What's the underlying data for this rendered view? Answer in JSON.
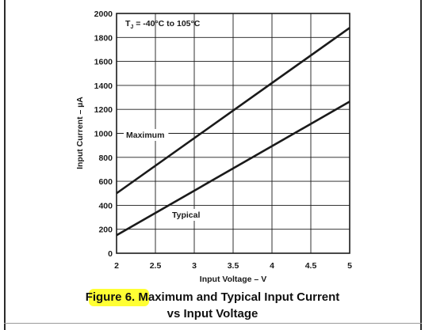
{
  "chart_data": {
    "type": "line",
    "xlabel": "Input Voltage – V",
    "ylabel": "Input Current – µA",
    "xlim": [
      2,
      5
    ],
    "ylim": [
      0,
      2000
    ],
    "x_ticks": [
      "2",
      "2.5",
      "3",
      "3.5",
      "4",
      "4.5",
      "5"
    ],
    "y_ticks": [
      "0",
      "200",
      "400",
      "600",
      "800",
      "1000",
      "1200",
      "1400",
      "1600",
      "1800",
      "2000"
    ],
    "grid": true,
    "series": [
      {
        "name": "Maximum",
        "x": [
          2,
          5
        ],
        "y": [
          500,
          1880
        ]
      },
      {
        "name": "Typical",
        "x": [
          2,
          5
        ],
        "y": [
          150,
          1265
        ]
      }
    ],
    "annotations": {
      "condition_prefix": "T",
      "condition_sub": "J",
      "condition_rest": " = -40°C to 105°C"
    }
  },
  "caption": {
    "line1_figure": "Figure 6.",
    "line1_rest": " Maximum and Typical Input Current",
    "line2": "vs Input Voltage"
  },
  "colors": {
    "highlight": "#ffff33",
    "line": "#1a1a1a",
    "grid": "#1a1a1a"
  }
}
